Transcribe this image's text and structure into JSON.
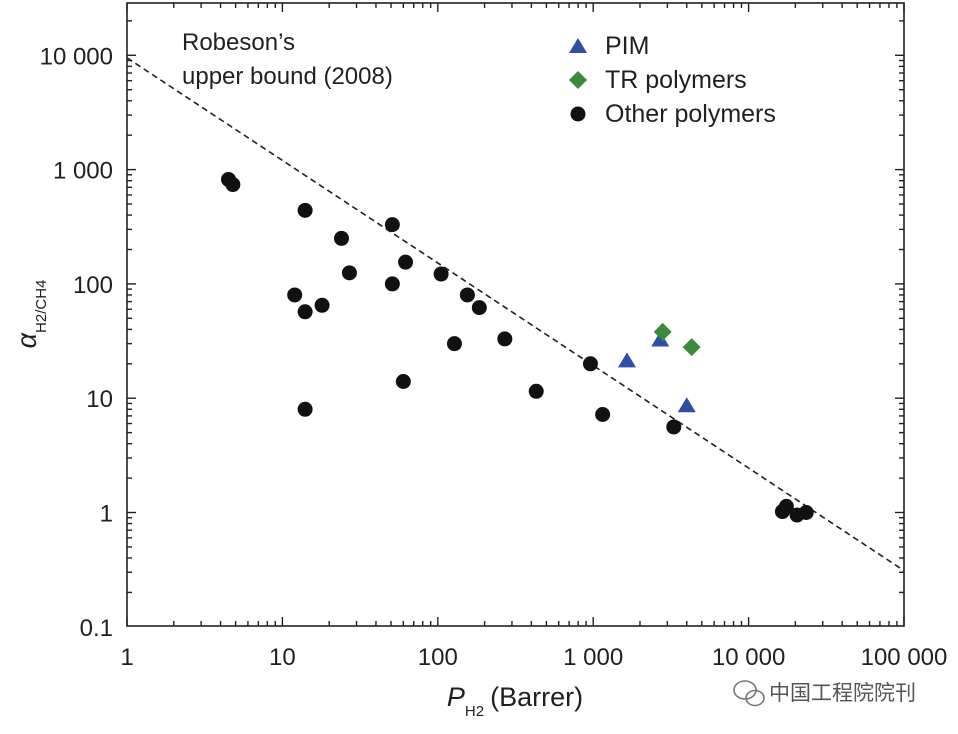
{
  "chart_data": {
    "type": "scatter",
    "title": "",
    "xlabel": {
      "symbol": "P",
      "subscript": "H2",
      "unit": "(Barrer)"
    },
    "ylabel": {
      "symbol": "α",
      "subscript": "H2/CH4"
    },
    "xscale": "log",
    "yscale": "log",
    "xlim": [
      1,
      100000
    ],
    "ylim": [
      0.1,
      30000
    ],
    "x_ticks": [
      {
        "value": 1,
        "label": "1"
      },
      {
        "value": 10,
        "label": "10"
      },
      {
        "value": 100,
        "label": "100"
      },
      {
        "value": 1000,
        "label": "1 000"
      },
      {
        "value": 10000,
        "label": "10 000"
      },
      {
        "value": 100000,
        "label": "100 000"
      }
    ],
    "y_ticks": [
      {
        "value": 0.1,
        "label": "0.1"
      },
      {
        "value": 1,
        "label": "1"
      },
      {
        "value": 10,
        "label": "10"
      },
      {
        "value": 100,
        "label": "100"
      },
      {
        "value": 1000,
        "label": "1 000"
      },
      {
        "value": 10000,
        "label": "10 000"
      }
    ],
    "upper_bound": {
      "label_line1": "Robeson’s",
      "label_line2": "upper bound (2008)",
      "points": [
        [
          1,
          9500
        ],
        [
          100000,
          0.31
        ]
      ],
      "style": "dashed"
    },
    "legend_position": "top-right",
    "series": [
      {
        "name": "PIM",
        "marker": "triangle",
        "color": "#2e4fa5",
        "points": [
          [
            1650,
            21
          ],
          [
            2700,
            32
          ],
          [
            4000,
            8.5
          ]
        ]
      },
      {
        "name": "TR polymers",
        "marker": "diamond",
        "color": "#3a8a3c",
        "points": [
          [
            2800,
            38
          ],
          [
            4300,
            28
          ]
        ]
      },
      {
        "name": "Other polymers",
        "marker": "circle",
        "color": "#111111",
        "points": [
          [
            4.5,
            820
          ],
          [
            4.8,
            740
          ],
          [
            14,
            440
          ],
          [
            24,
            250
          ],
          [
            27,
            125
          ],
          [
            12,
            80
          ],
          [
            14,
            57
          ],
          [
            18,
            65
          ],
          [
            14,
            8
          ],
          [
            51,
            330
          ],
          [
            51,
            100
          ],
          [
            62,
            155
          ],
          [
            60,
            14
          ],
          [
            105,
            122
          ],
          [
            155,
            80
          ],
          [
            185,
            62
          ],
          [
            128,
            30
          ],
          [
            270,
            33
          ],
          [
            430,
            11.5
          ],
          [
            960,
            20
          ],
          [
            1150,
            7.2
          ],
          [
            3300,
            5.6
          ],
          [
            16500,
            1.02
          ],
          [
            17500,
            1.13
          ],
          [
            20500,
            0.95
          ],
          [
            23500,
            1.0
          ]
        ]
      }
    ]
  },
  "watermark": {
    "text": "中国工程院院刊"
  }
}
